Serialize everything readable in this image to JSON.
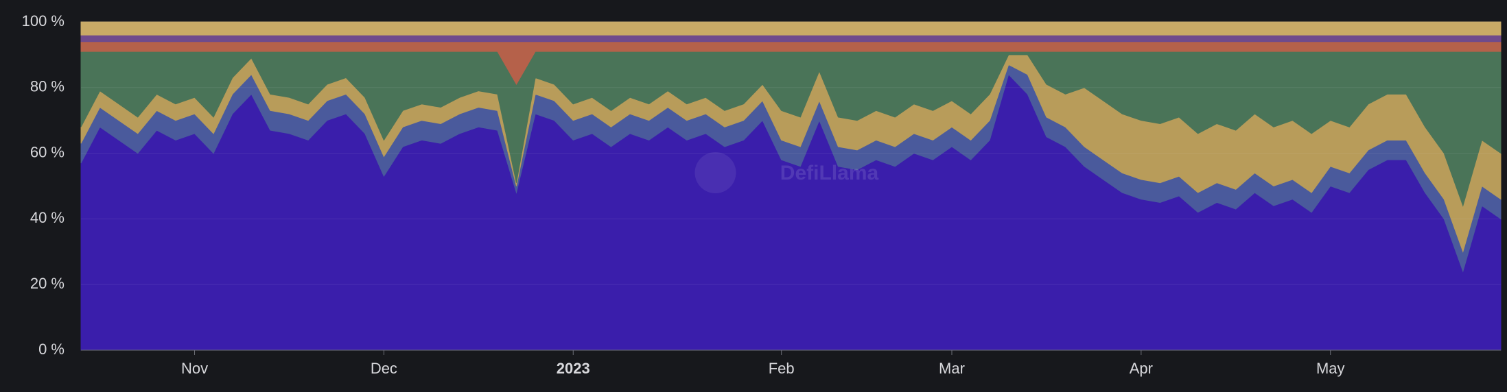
{
  "chart_data": {
    "type": "stacked-area",
    "watermark": "DefiLlama",
    "categories": [
      null,
      null,
      null,
      null,
      null,
      null,
      "Nov",
      null,
      null,
      null,
      null,
      null,
      null,
      null,
      null,
      null,
      "Dec",
      null,
      null,
      null,
      null,
      null,
      null,
      null,
      null,
      null,
      "2023",
      null,
      null,
      null,
      null,
      null,
      null,
      null,
      null,
      null,
      null,
      "Feb",
      null,
      null,
      null,
      null,
      null,
      null,
      null,
      null,
      "Mar",
      null,
      null,
      null,
      null,
      null,
      null,
      null,
      null,
      null,
      "Apr",
      null,
      null,
      null,
      null,
      null,
      null,
      null,
      null,
      null,
      "May",
      null,
      null,
      null,
      null,
      null,
      null,
      null,
      null,
      null
    ],
    "series": [
      {
        "color": "#3a1eab",
        "values": [
          57,
          68,
          64,
          60,
          67,
          64,
          66,
          60,
          72,
          78,
          67,
          66,
          64,
          70,
          72,
          66,
          53,
          62,
          64,
          63,
          66,
          68,
          67,
          48,
          72,
          70,
          64,
          66,
          62,
          66,
          64,
          68,
          64,
          66,
          62,
          64,
          70,
          58,
          56,
          70,
          56,
          55,
          58,
          56,
          60,
          58,
          62,
          58,
          64,
          84,
          78,
          65,
          62,
          56,
          52,
          48,
          46,
          45,
          47,
          42,
          45,
          43,
          48,
          44,
          46,
          42,
          50,
          48,
          55,
          58,
          58,
          48,
          40,
          24,
          44,
          40
        ]
      },
      {
        "color": "#4a5a9c",
        "values": [
          6,
          6,
          6,
          6,
          6,
          6,
          6,
          6,
          6,
          6,
          6,
          6,
          6,
          6,
          6,
          6,
          6,
          6,
          6,
          6,
          6,
          6,
          6,
          2,
          6,
          6,
          6,
          6,
          6,
          6,
          6,
          6,
          6,
          6,
          6,
          6,
          6,
          6,
          6,
          6,
          6,
          6,
          6,
          6,
          6,
          6,
          6,
          6,
          6,
          3,
          6,
          6,
          6,
          6,
          6,
          6,
          6,
          6,
          6,
          6,
          6,
          6,
          6,
          6,
          6,
          6,
          6,
          6,
          6,
          6,
          6,
          6,
          6,
          6,
          6,
          6
        ]
      },
      {
        "color": "#b89c5a",
        "values": [
          5,
          5,
          5,
          5,
          5,
          5,
          5,
          5,
          5,
          5,
          5,
          5,
          5,
          5,
          5,
          5,
          5,
          5,
          5,
          5,
          5,
          5,
          5,
          1,
          5,
          5,
          5,
          5,
          5,
          5,
          5,
          5,
          5,
          5,
          5,
          5,
          5,
          9,
          9,
          9,
          9,
          9,
          9,
          9,
          9,
          9,
          8,
          8,
          8,
          3,
          6,
          10,
          10,
          18,
          18,
          18,
          18,
          18,
          18,
          18,
          18,
          18,
          18,
          18,
          18,
          18,
          14,
          14,
          14,
          14,
          14,
          14,
          14,
          14,
          14,
          14
        ]
      },
      {
        "color": "#4a7458",
        "values": [
          23,
          12,
          16,
          20,
          13,
          16,
          14,
          20,
          8,
          2,
          13,
          14,
          16,
          10,
          8,
          14,
          27,
          18,
          16,
          17,
          14,
          12,
          13,
          30,
          8,
          10,
          16,
          14,
          18,
          14,
          16,
          12,
          16,
          14,
          18,
          16,
          10,
          18,
          20,
          6,
          20,
          21,
          18,
          20,
          16,
          18,
          15,
          19,
          13,
          1,
          1,
          10,
          13,
          11,
          15,
          19,
          21,
          22,
          20,
          25,
          22,
          24,
          19,
          23,
          21,
          25,
          21,
          23,
          16,
          13,
          13,
          23,
          31,
          47,
          27,
          31
        ]
      },
      {
        "color": "#b5614a",
        "values": [
          3,
          3,
          3,
          3,
          3,
          3,
          3,
          3,
          3,
          3,
          3,
          3,
          3,
          3,
          3,
          3,
          3,
          3,
          3,
          3,
          3,
          3,
          3,
          13,
          3,
          3,
          3,
          3,
          3,
          3,
          3,
          3,
          3,
          3,
          3,
          3,
          3,
          3,
          3,
          3,
          3,
          3,
          3,
          3,
          3,
          3,
          3,
          3,
          3,
          3,
          3,
          3,
          3,
          3,
          3,
          3,
          3,
          3,
          3,
          3,
          3,
          3,
          3,
          3,
          3,
          3,
          3,
          3,
          3,
          3,
          3,
          3,
          3,
          3,
          3,
          3
        ]
      },
      {
        "color": "#6f4a8c",
        "values": [
          2,
          2,
          2,
          2,
          2,
          2,
          2,
          2,
          2,
          2,
          2,
          2,
          2,
          2,
          2,
          2,
          2,
          2,
          2,
          2,
          2,
          2,
          2,
          2,
          2,
          2,
          2,
          2,
          2,
          2,
          2,
          2,
          2,
          2,
          2,
          2,
          2,
          2,
          2,
          2,
          2,
          2,
          2,
          2,
          2,
          2,
          2,
          2,
          2,
          2,
          2,
          2,
          2,
          2,
          2,
          2,
          2,
          2,
          2,
          2,
          2,
          2,
          2,
          2,
          2,
          2,
          2,
          2,
          2,
          2,
          2,
          2,
          2,
          2,
          2,
          2
        ]
      },
      {
        "color": "#c9aa66",
        "values": [
          4,
          4,
          4,
          4,
          4,
          4,
          4,
          4,
          4,
          4,
          4,
          4,
          4,
          4,
          4,
          4,
          4,
          4,
          4,
          4,
          4,
          4,
          4,
          4,
          4,
          4,
          4,
          4,
          4,
          4,
          4,
          4,
          4,
          4,
          4,
          4,
          4,
          4,
          4,
          4,
          4,
          4,
          4,
          4,
          4,
          4,
          4,
          4,
          4,
          4,
          4,
          4,
          4,
          4,
          4,
          4,
          4,
          4,
          4,
          4,
          4,
          4,
          4,
          4,
          4,
          4,
          4,
          4,
          4,
          4,
          4,
          4,
          4,
          4,
          4,
          4
        ]
      }
    ],
    "ylim": [
      0,
      100
    ],
    "yticks": [
      {
        "value": 0,
        "label": "0 %"
      },
      {
        "value": 20,
        "label": "20 %"
      },
      {
        "value": 40,
        "label": "40 %"
      },
      {
        "value": 60,
        "label": "60 %"
      },
      {
        "value": 80,
        "label": "80 %"
      },
      {
        "value": 100,
        "label": "100 %"
      }
    ],
    "grid": true
  }
}
